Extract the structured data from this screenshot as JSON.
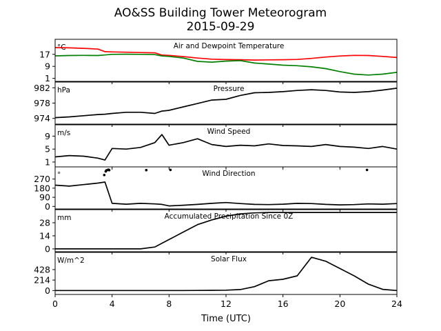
{
  "title": "AO&SS Building Tower Meteorogram",
  "subtitle": "2015-09-29",
  "chart_data": {
    "type": "line",
    "xlabel": "Time (UTC)",
    "xlim": [
      0,
      24
    ],
    "xticks": [
      "0",
      "4",
      "8",
      "12",
      "16",
      "20",
      "24"
    ],
    "x": [
      0,
      1,
      2,
      3,
      3.5,
      4,
      5,
      6,
      7,
      7.5,
      8,
      9,
      10,
      11,
      12,
      13,
      14,
      15,
      16,
      17,
      18,
      19,
      20,
      21,
      22,
      23,
      24
    ],
    "panels": [
      {
        "title": "Air and Dewpoint Temperature",
        "unit": "°C",
        "ylim": [
          -1,
          27
        ],
        "yticks": [
          1,
          9,
          17
        ],
        "series": [
          {
            "color": "#ff0000",
            "values": [
              21.5,
              21.3,
              21,
              20.5,
              18.8,
              18.6,
              18.4,
              18.2,
              18,
              16.5,
              16.3,
              15.5,
              14.5,
              13.8,
              13.5,
              13.4,
              13.2,
              13.3,
              13.4,
              13.6,
              14.3,
              15.2,
              15.9,
              16.3,
              16.2,
              15.6,
              14.9
            ]
          },
          {
            "color": "#008000",
            "values": [
              16,
              16.2,
              16.3,
              16.2,
              16.6,
              17,
              17.1,
              17,
              16.8,
              15.9,
              15.6,
              14.5,
              12.3,
              11.8,
              12.5,
              12.8,
              11.2,
              10.5,
              9.8,
              9.4,
              8.7,
              7.5,
              5.5,
              3.8,
              3.2,
              3.8,
              5
            ]
          }
        ]
      },
      {
        "title": "Pressure",
        "unit": "hPa",
        "ylim": [
          972.5,
          983.5
        ],
        "yticks": [
          974,
          978,
          982
        ],
        "series": [
          {
            "color": "#000000",
            "values": [
              974.2,
              974.4,
              974.7,
              975,
              975.1,
              975.3,
              975.6,
              975.6,
              975.3,
              975.9,
              976.1,
              977,
              977.9,
              978.8,
              979,
              980,
              980.7,
              980.8,
              981,
              981.3,
              981.5,
              981.3,
              980.9,
              980.8,
              981,
              981.4,
              981.9
            ]
          }
        ]
      },
      {
        "title": "Wind Speed",
        "unit": "m/s",
        "ylim": [
          -0.5,
          12.5
        ],
        "yticks": [
          1,
          5,
          9
        ],
        "series": [
          {
            "color": "#000000",
            "values": [
              2.6,
              3,
              2.8,
              2.2,
              1.6,
              5.2,
              5,
              5.5,
              7,
              9.5,
              6.2,
              7,
              8.2,
              6.4,
              5.8,
              6.2,
              6,
              6.6,
              6.1,
              6,
              5.8,
              6.4,
              5.8,
              5.6,
              5.2,
              5.8,
              5
            ]
          }
        ]
      },
      {
        "title": "Wind Direction",
        "unit": "°",
        "ylim": [
          -25,
          390
        ],
        "yticks": [
          0,
          90,
          180,
          270
        ],
        "series": [
          {
            "color": "#000000",
            "values": [
              210,
              200,
              215,
              230,
              240,
              30,
              22,
              30,
              25,
              20,
              5,
              12,
              20,
              30,
              38,
              28,
              20,
              18,
              22,
              30,
              28,
              20,
              15,
              18,
              25,
              22,
              28
            ]
          }
        ],
        "scatter": {
          "x": [
            3.45,
            3.55,
            3.6,
            3.7,
            3.75,
            3.8,
            6.4,
            8.1,
            21.9
          ],
          "y": [
            310,
            345,
            355,
            360,
            362,
            358,
            358,
            360,
            360
          ]
        }
      },
      {
        "title": "Accumulated Precipitation Since 0Z",
        "unit": "mm",
        "ylim": [
          -3,
          42
        ],
        "yticks": [
          0,
          14,
          28
        ],
        "series": [
          {
            "color": "#000000",
            "values": [
              0,
              0,
              0,
              0,
              0,
              0,
              0,
              0,
              2,
              6,
              10,
              18,
              26,
              31,
              35,
              37.5,
              38.5,
              39,
              39,
              39,
              39,
              39,
              39,
              39,
              39,
              39,
              39
            ]
          }
        ]
      },
      {
        "title": "Solar Flux",
        "unit": "W/m^2",
        "ylim": [
          -80,
          780
        ],
        "yticks": [
          0,
          214,
          428
        ],
        "series": [
          {
            "color": "#000000",
            "values": [
              0,
              0,
              0,
              0,
              0,
              0,
              0,
              0,
              0,
              0,
              0,
              0,
              2,
              4,
              8,
              20,
              80,
              200,
              230,
              300,
              680,
              600,
              450,
              300,
              130,
              25,
              0
            ]
          }
        ]
      }
    ]
  }
}
